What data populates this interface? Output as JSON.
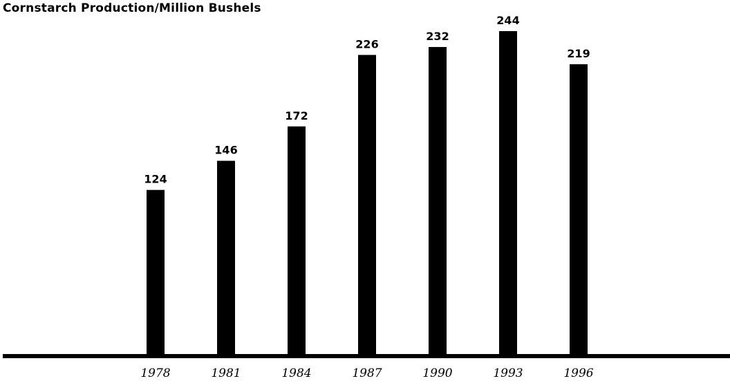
{
  "chart_data": {
    "type": "bar",
    "title": "Cornstarch Production/Million Bushels",
    "xlabel": "",
    "ylabel": "",
    "categories": [
      "1978",
      "1981",
      "1984",
      "1987",
      "1990",
      "1993",
      "1996"
    ],
    "values": [
      124,
      146,
      172,
      226,
      232,
      244,
      219
    ],
    "data_labels": [
      "124",
      "146",
      "172",
      "226",
      "232",
      "244",
      "219"
    ],
    "ylim": [
      0,
      244
    ],
    "grid": false,
    "legend": "none",
    "colors": {
      "bar": "#000000",
      "text": "#000000",
      "axis": "#000000",
      "background": "#ffffff"
    }
  }
}
